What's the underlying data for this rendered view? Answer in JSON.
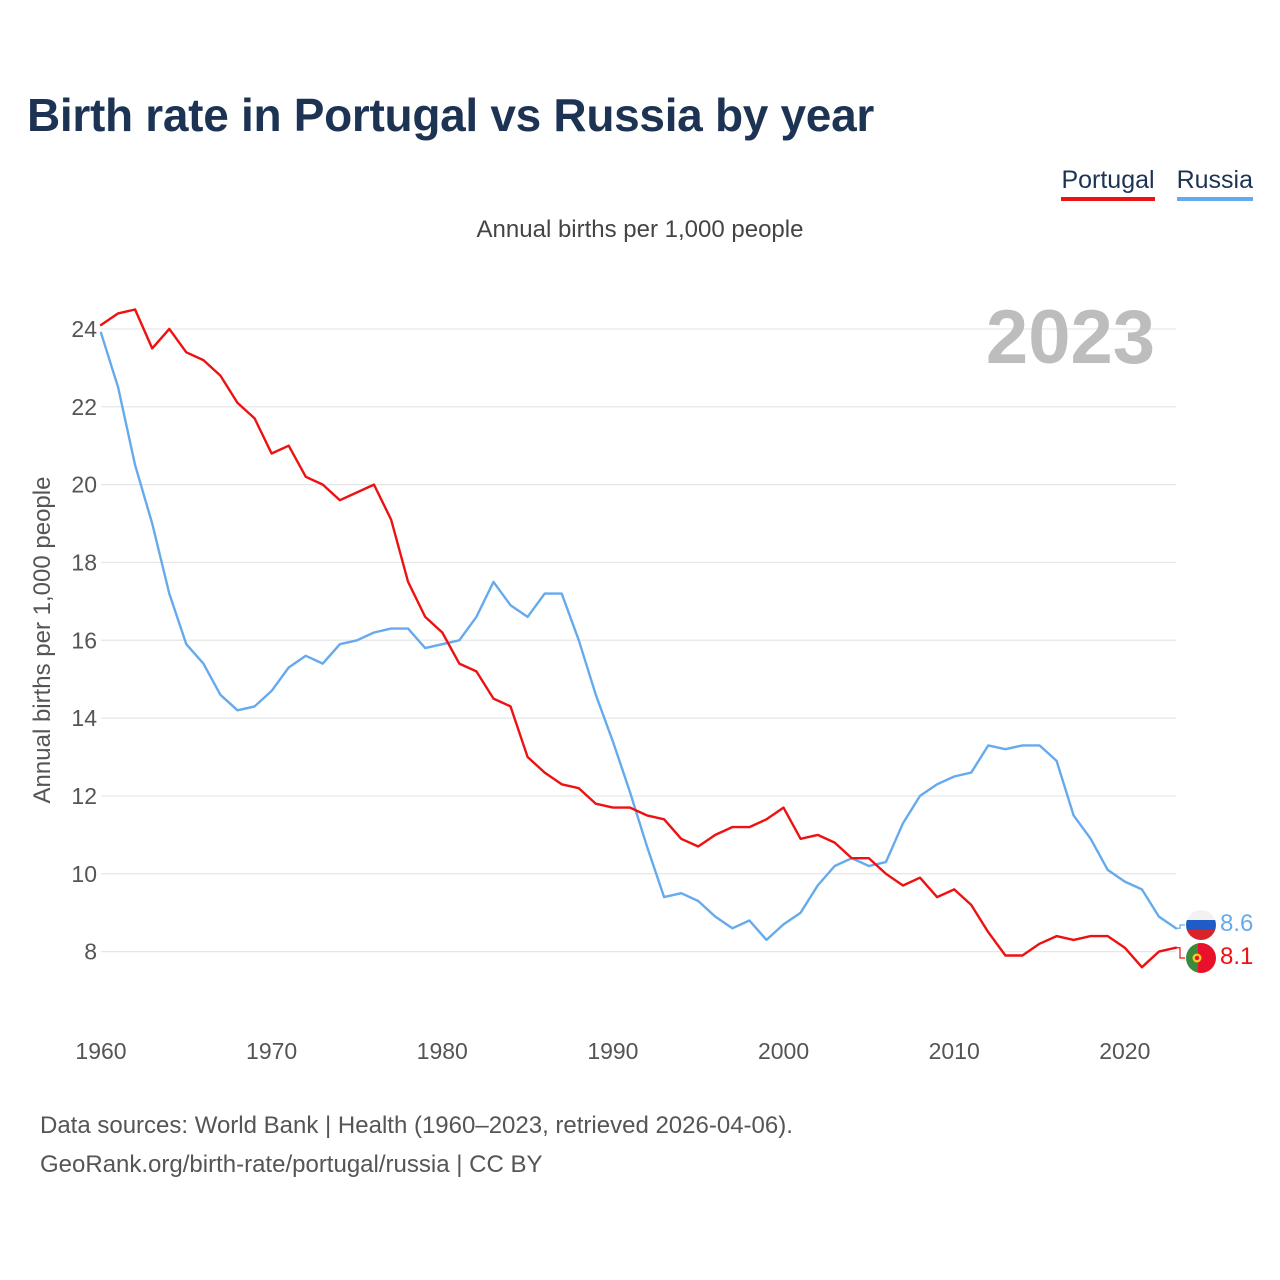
{
  "title": "Birth rate in Portugal vs Russia by year",
  "subtitle": "Annual births per 1,000 people",
  "year_badge": "2023",
  "legend": [
    {
      "label": "Portugal",
      "color": "#ee1111"
    },
    {
      "label": "Russia",
      "color": "#66aaee"
    }
  ],
  "source": {
    "line1": "Data sources: World Bank | Health (1960–2023, retrieved 2026-04-06).",
    "line2": "GeoRank.org/birth-rate/portugal/russia | CC BY"
  },
  "chart_data": {
    "type": "line",
    "title": "Birth rate in Portugal vs Russia by year",
    "xlabel": "",
    "ylabel": "Annual births per 1,000 people",
    "xlim": [
      1960,
      2023
    ],
    "ylim": [
      6.5,
      25
    ],
    "x_ticks": [
      1960,
      1970,
      1980,
      1990,
      2000,
      2010,
      2020
    ],
    "y_ticks": [
      8,
      10,
      12,
      14,
      16,
      18,
      20,
      22,
      24
    ],
    "grid": true,
    "legend_position": "top-right",
    "x": [
      1960,
      1961,
      1962,
      1963,
      1964,
      1965,
      1966,
      1967,
      1968,
      1969,
      1970,
      1971,
      1972,
      1973,
      1974,
      1975,
      1976,
      1977,
      1978,
      1979,
      1980,
      1981,
      1982,
      1983,
      1984,
      1985,
      1986,
      1987,
      1988,
      1989,
      1990,
      1991,
      1992,
      1993,
      1994,
      1995,
      1996,
      1997,
      1998,
      1999,
      2000,
      2001,
      2002,
      2003,
      2004,
      2005,
      2006,
      2007,
      2008,
      2009,
      2010,
      2011,
      2012,
      2013,
      2014,
      2015,
      2016,
      2017,
      2018,
      2019,
      2020,
      2021,
      2022,
      2023
    ],
    "series": [
      {
        "name": "Portugal",
        "color": "#ee1111",
        "end_label": "8.1",
        "values": [
          24.1,
          24.4,
          24.5,
          23.5,
          24.0,
          23.4,
          23.2,
          22.8,
          22.1,
          21.7,
          20.8,
          21.0,
          20.2,
          20.0,
          19.6,
          19.8,
          20.0,
          19.1,
          17.5,
          16.6,
          16.2,
          15.4,
          15.2,
          14.5,
          14.3,
          13.0,
          12.6,
          12.3,
          12.2,
          11.8,
          11.7,
          11.7,
          11.5,
          11.4,
          10.9,
          10.7,
          11.0,
          11.2,
          11.2,
          11.4,
          11.7,
          10.9,
          11.0,
          10.8,
          10.4,
          10.4,
          10.0,
          9.7,
          9.9,
          9.4,
          9.6,
          9.2,
          8.5,
          7.9,
          7.9,
          8.2,
          8.4,
          8.3,
          8.4,
          8.4,
          8.1,
          7.6,
          8.0,
          8.1
        ]
      },
      {
        "name": "Russia",
        "color": "#66aaee",
        "end_label": "8.6",
        "values": [
          23.9,
          22.5,
          20.5,
          19.0,
          17.2,
          15.9,
          15.4,
          14.6,
          14.2,
          14.3,
          14.7,
          15.3,
          15.6,
          15.4,
          15.9,
          16.0,
          16.2,
          16.3,
          16.3,
          15.8,
          15.9,
          16.0,
          16.6,
          17.5,
          16.9,
          16.6,
          17.2,
          17.2,
          16.0,
          14.6,
          13.4,
          12.1,
          10.7,
          9.4,
          9.5,
          9.3,
          8.9,
          8.6,
          8.8,
          8.3,
          8.7,
          9.0,
          9.7,
          10.2,
          10.4,
          10.2,
          10.3,
          11.3,
          12.0,
          12.3,
          12.5,
          12.6,
          13.3,
          13.2,
          13.3,
          13.3,
          12.9,
          11.5,
          10.9,
          10.1,
          9.8,
          9.6,
          8.9,
          8.6
        ]
      }
    ]
  }
}
